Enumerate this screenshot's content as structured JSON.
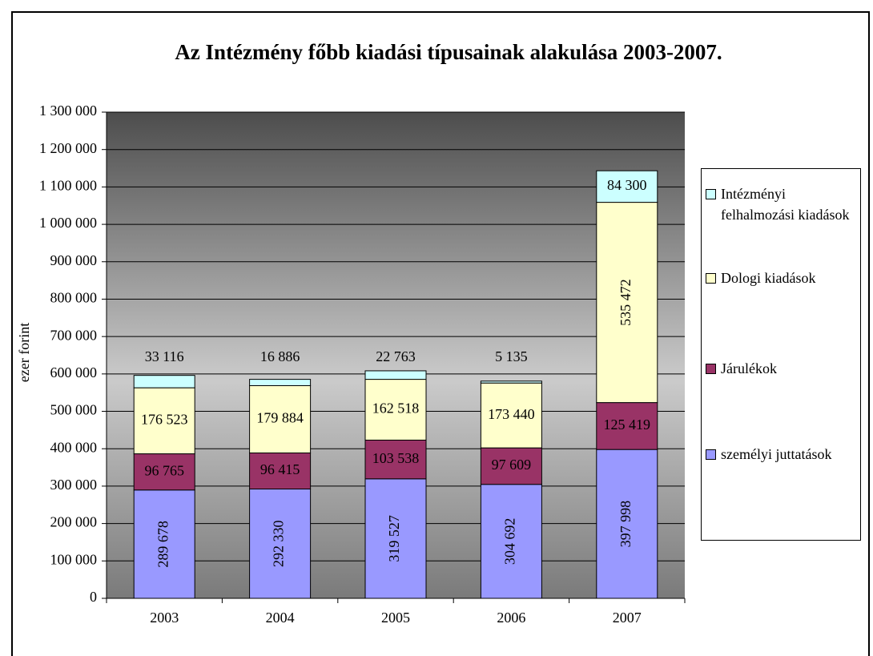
{
  "chart_data": {
    "type": "stacked_bar",
    "title": "Az Intézmény főbb kiadási típusainak alakulása 2003-2007.",
    "y_label": "ezer forint",
    "categories": [
      "2003",
      "2004",
      "2005",
      "2006",
      "2007"
    ],
    "series": [
      {
        "name": "személyi juttatások",
        "color": "#9999ff",
        "values": [
          289678,
          292330,
          319527,
          304692,
          397998
        ],
        "value_labels": [
          "289 678",
          "292 330",
          "319 527",
          "304 692",
          "397 998"
        ]
      },
      {
        "name": "Járulékok",
        "color": "#993366",
        "values": [
          96765,
          96415,
          103538,
          97609,
          125419
        ],
        "value_labels": [
          "96 765",
          "96 415",
          "103 538",
          "97 609",
          "125 419"
        ]
      },
      {
        "name": "Dologi kiadások",
        "color": "#ffffcc",
        "values": [
          176523,
          179884,
          162518,
          173440,
          535472
        ],
        "value_labels": [
          "176 523",
          "179 884",
          "162 518",
          "173 440",
          "535 472"
        ]
      },
      {
        "name": "Intézményi felhalmozási kiadások",
        "color": "#ccffff",
        "values": [
          33116,
          16886,
          22763,
          5135,
          84300
        ],
        "value_labels": [
          "33 116",
          "16 886",
          "22 763",
          "5 135",
          "84 300"
        ]
      }
    ],
    "ylim": [
      0,
      1300000
    ],
    "yticks": [
      0,
      {
        "value": 100000,
        "label": "100 000"
      },
      {
        "value": 200000,
        "label": "200 000"
      },
      {
        "value": 300000,
        "label": "300 000"
      },
      {
        "value": 400000,
        "label": "400 000"
      },
      {
        "value": 500000,
        "label": "500 000"
      },
      {
        "value": 600000,
        "label": "600 000"
      },
      {
        "value": 700000,
        "label": "700 000"
      },
      {
        "value": 800000,
        "label": "800 000"
      },
      {
        "value": 900000,
        "label": "900 000"
      },
      {
        "value": 1000000,
        "label": "1 000 000"
      },
      {
        "value": 1100000,
        "label": "1 100 000"
      },
      {
        "value": 1200000,
        "label": "1 200 000"
      },
      {
        "value": 1300000,
        "label": "1 300 000"
      }
    ],
    "grid": true,
    "legend": "right"
  }
}
